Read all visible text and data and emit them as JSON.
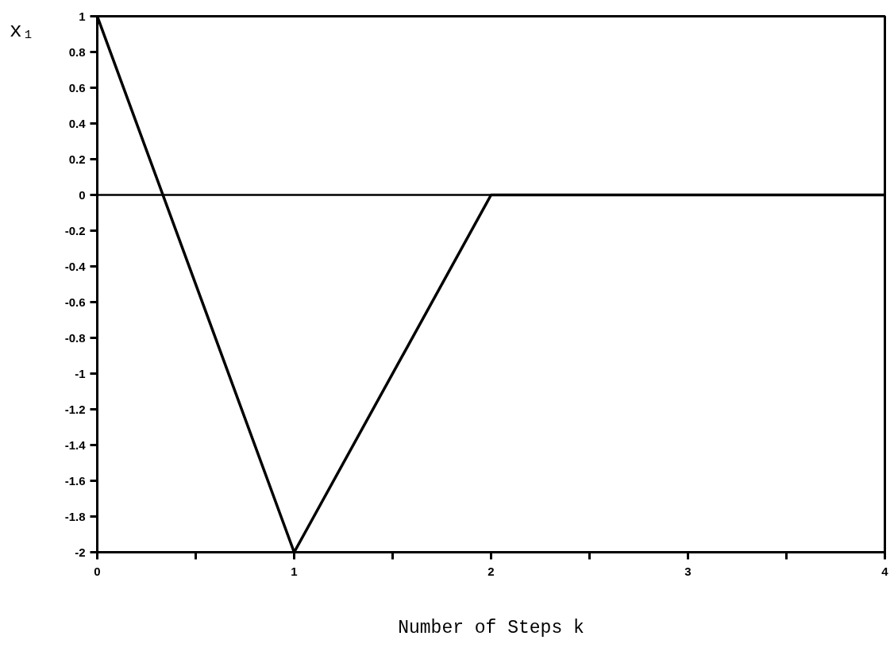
{
  "chart_data": {
    "type": "line",
    "xlabel": "Number of Steps k",
    "ylabel": "x₁",
    "x": [
      0,
      1,
      2,
      3,
      4
    ],
    "series": [
      {
        "color": "#000000",
        "values": [
          1,
          -2,
          0,
          0,
          0
        ]
      }
    ],
    "xlim": [
      0,
      4
    ],
    "ylim": [
      -2,
      1
    ],
    "xticks": [
      0,
      {
        "value": 0.5,
        "label": null
      },
      1,
      {
        "value": 1.5,
        "label": null
      },
      2,
      {
        "value": 2.5,
        "label": null
      },
      3,
      {
        "value": 3.5,
        "label": null
      },
      4
    ],
    "yticks": [
      -2,
      -1.8,
      -1.6,
      -1.4,
      -1.2,
      -1,
      -0.8,
      -0.6,
      -0.4,
      -0.2,
      0,
      0.2,
      0.4,
      0.6,
      0.8,
      1
    ],
    "ref_lines": [
      {
        "axis": "y",
        "value": 0,
        "color": "#000000"
      }
    ],
    "grid": false,
    "marker": "none",
    "line_style": "solid"
  }
}
